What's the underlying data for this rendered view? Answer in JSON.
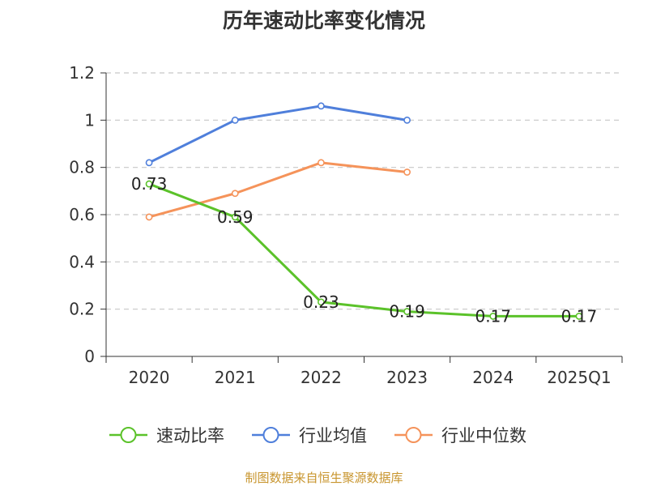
{
  "chart_data": {
    "type": "line",
    "title": "历年速动比率变化情况",
    "categories": [
      "2020",
      "2021",
      "2022",
      "2023",
      "2024",
      "2025Q1"
    ],
    "y_ticks": [
      "0",
      "0.2",
      "0.4",
      "0.6",
      "0.8",
      "1",
      "1.2"
    ],
    "ylim": [
      0,
      1.2
    ],
    "grid": "horizontal dashed",
    "legend_position": "bottom",
    "series": [
      {
        "name": "速动比率",
        "color": "#5bc22a",
        "values": [
          0.73,
          0.59,
          0.23,
          0.19,
          0.17,
          0.17
        ],
        "labels": [
          "0.73",
          "0.59",
          "0.23",
          "0.19",
          "0.17",
          "0.17"
        ]
      },
      {
        "name": "行业均值",
        "color": "#4f7fdb",
        "values": [
          0.82,
          1.0,
          1.06,
          1.0,
          null,
          null
        ]
      },
      {
        "name": "行业中位数",
        "color": "#f5935a",
        "values": [
          0.59,
          0.69,
          0.82,
          0.78,
          null,
          null
        ]
      }
    ]
  },
  "source": "制图数据来自恒生聚源数据库"
}
